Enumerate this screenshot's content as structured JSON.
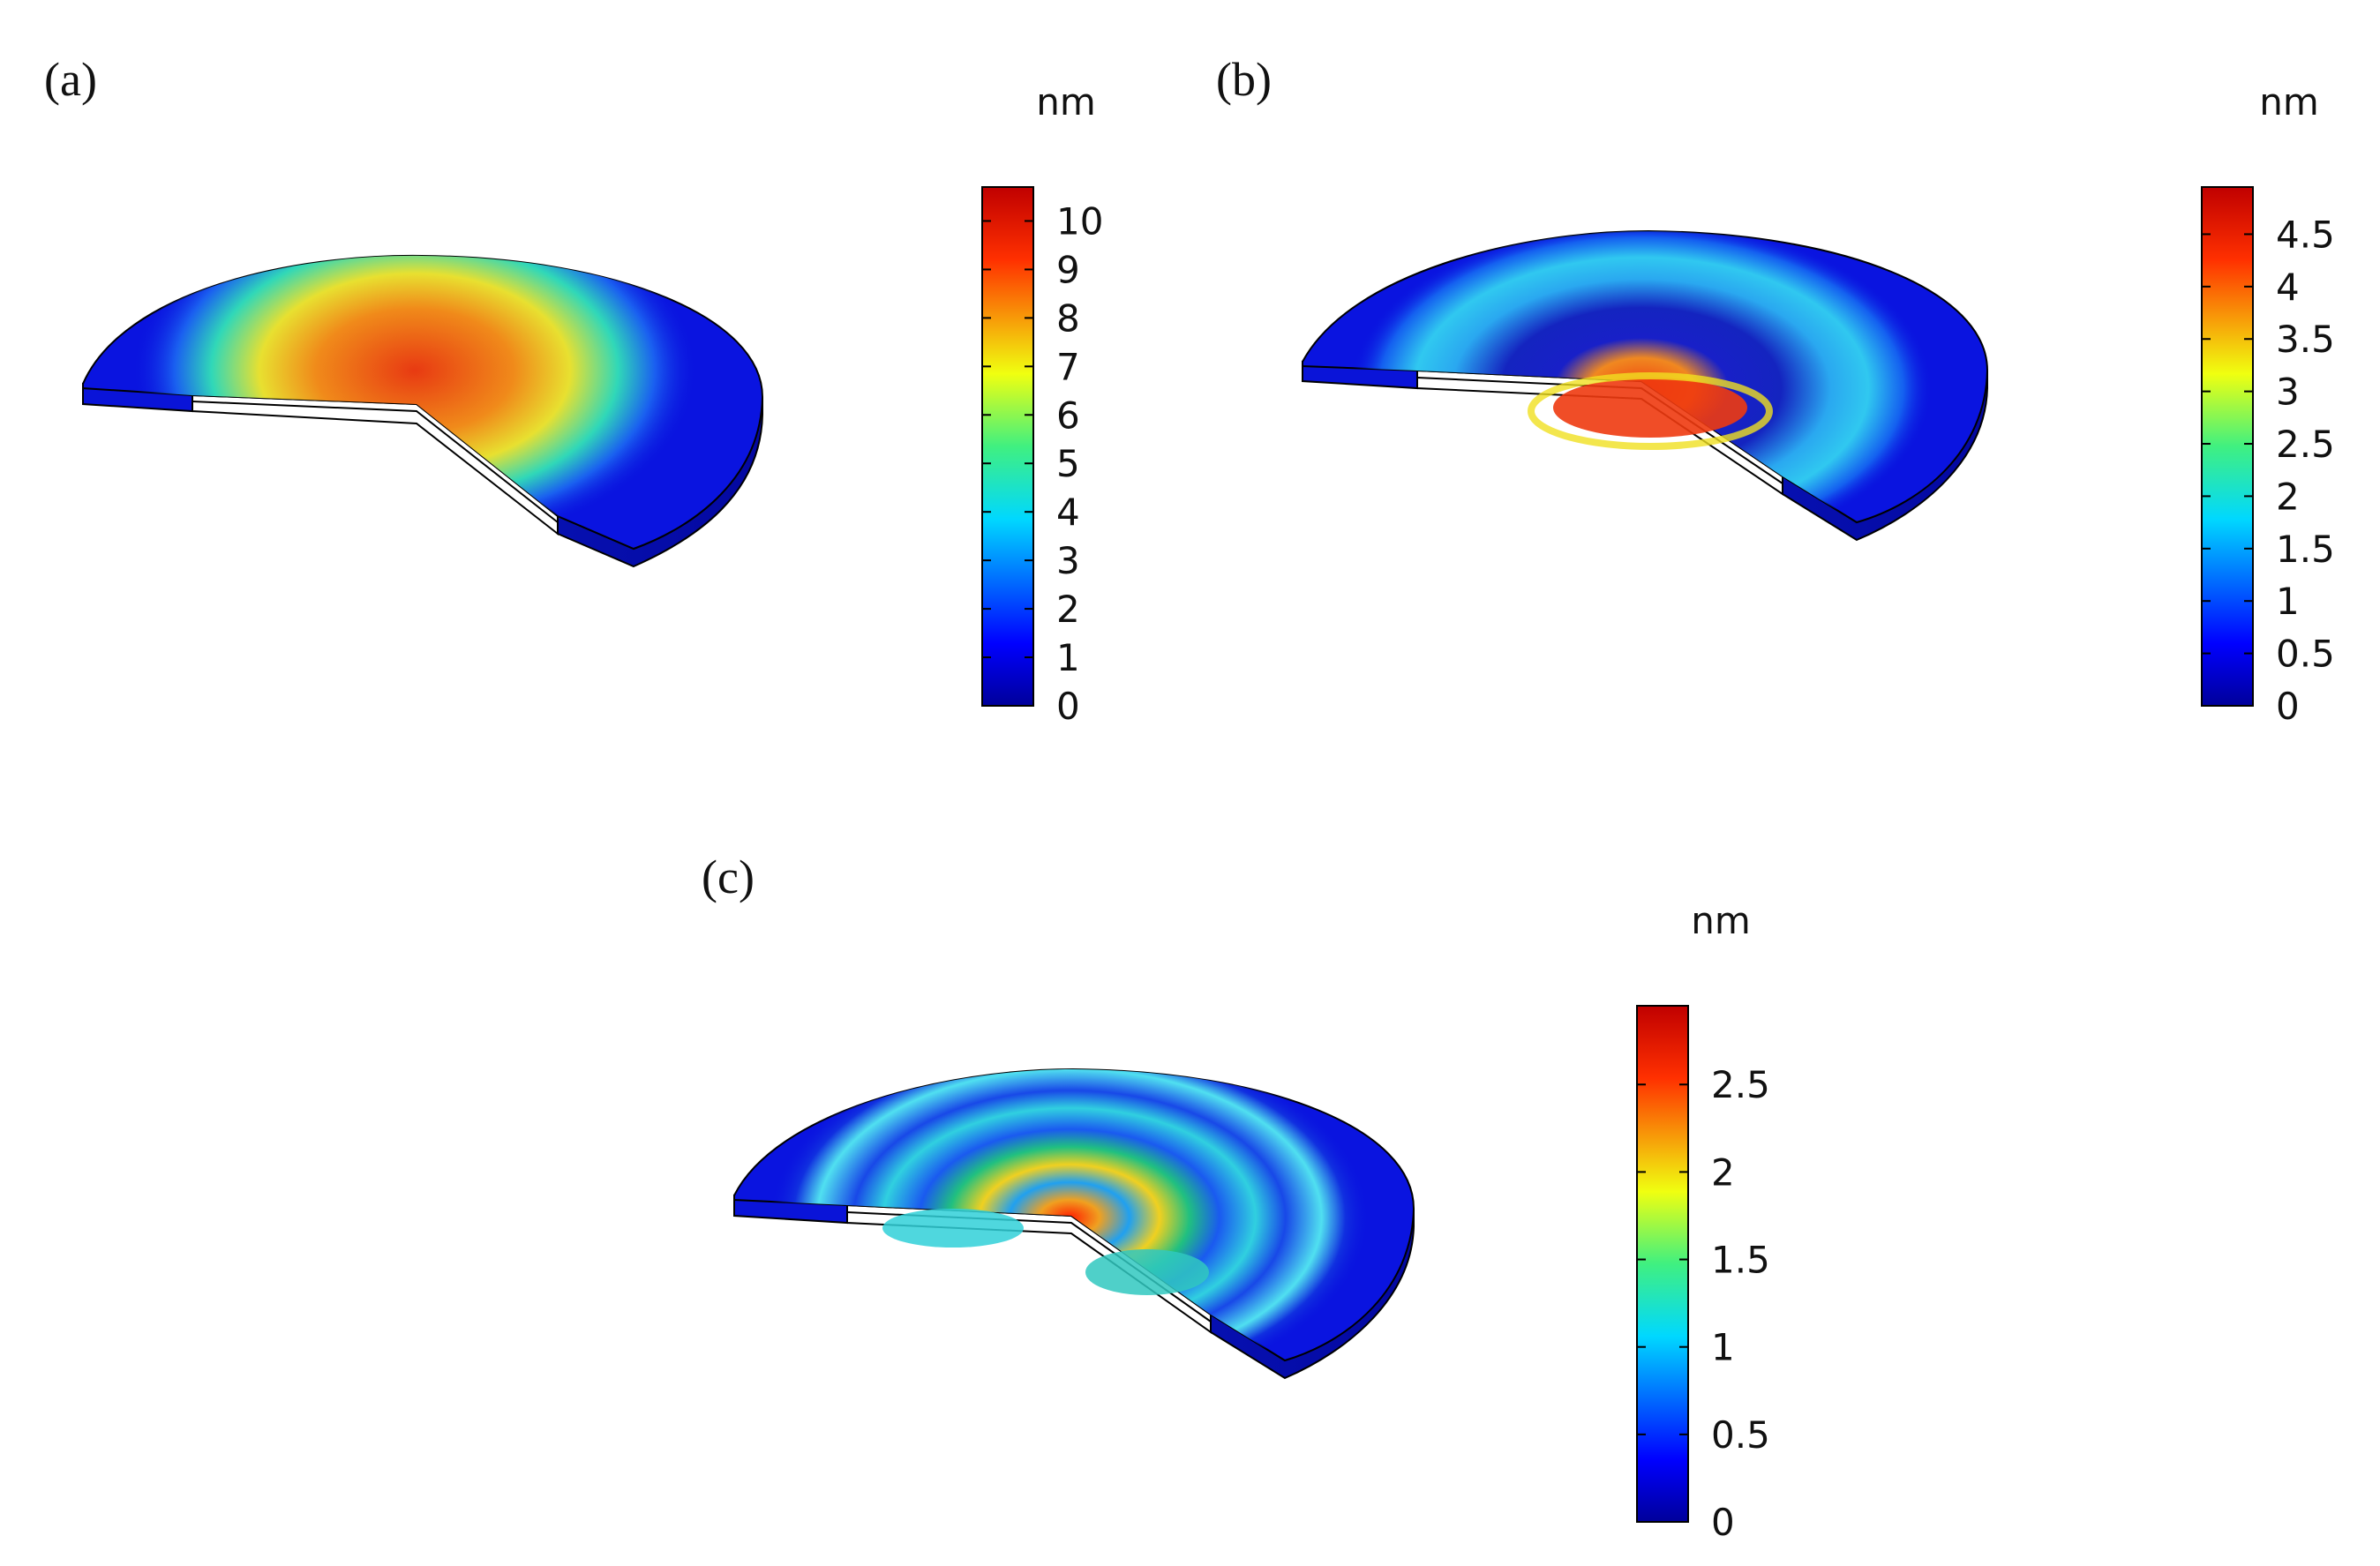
{
  "panels": [
    {
      "id": "a",
      "label": "(a)",
      "unit": "nm",
      "scale_min": 0,
      "scale_max": 10.7,
      "ticks": [
        "0",
        "1",
        "2",
        "3",
        "4",
        "5",
        "6",
        "7",
        "8",
        "9",
        "10"
      ]
    },
    {
      "id": "b",
      "label": "(b)",
      "unit": "nm",
      "scale_min": 0,
      "scale_max": 4.95,
      "ticks": [
        "0",
        "0.5",
        "1",
        "1.5",
        "2",
        "2.5",
        "3",
        "3.5",
        "4",
        "4.5"
      ]
    },
    {
      "id": "c",
      "label": "(c)",
      "unit": "nm",
      "scale_min": 0,
      "scale_max": 2.95,
      "ticks": [
        "0",
        "0.5",
        "1",
        "1.5",
        "2",
        "2.5"
      ]
    }
  ],
  "colors": {
    "jet_low": "#0000c8",
    "jet_mid_low": "#00c8ff",
    "jet_mid": "#40e060",
    "jet_mid_high": "#ffe600",
    "jet_high": "#e41a0a"
  }
}
